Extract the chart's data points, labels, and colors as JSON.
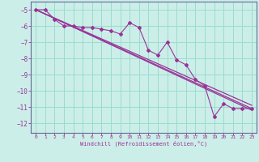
{
  "xlabel": "Windchill (Refroidissement éolien,°C)",
  "background_color": "#cceee8",
  "grid_color": "#99ddcc",
  "line_color": "#993399",
  "spine_color": "#666699",
  "xlim": [
    -0.5,
    23.5
  ],
  "ylim": [
    -12.6,
    -4.5
  ],
  "yticks": [
    -5,
    -6,
    -7,
    -8,
    -9,
    -10,
    -11,
    -12
  ],
  "xticks": [
    0,
    1,
    2,
    3,
    4,
    5,
    6,
    7,
    8,
    9,
    10,
    11,
    12,
    13,
    14,
    15,
    16,
    17,
    18,
    19,
    20,
    21,
    22,
    23
  ],
  "series1_x": [
    0,
    1,
    2,
    3,
    4,
    5,
    6,
    7,
    8,
    9,
    10,
    11,
    12,
    13,
    14,
    15,
    16,
    17,
    18,
    19,
    20,
    21,
    22,
    23
  ],
  "series1_y": [
    -5.0,
    -5.0,
    -5.6,
    -6.0,
    -6.0,
    -6.1,
    -6.1,
    -6.2,
    -6.3,
    -6.5,
    -5.8,
    -6.1,
    -7.5,
    -7.8,
    -7.0,
    -8.1,
    -8.4,
    -9.3,
    -9.7,
    -11.6,
    -10.8,
    -11.1,
    -11.1,
    -11.1
  ],
  "trend1_x": [
    0,
    23
  ],
  "trend1_y": [
    -5.0,
    -11.1
  ],
  "trend2_x": [
    0,
    23
  ],
  "trend2_y": [
    -5.0,
    -11.2
  ],
  "trend3_x": [
    0,
    23
  ],
  "trend3_y": [
    -5.0,
    -10.9
  ]
}
